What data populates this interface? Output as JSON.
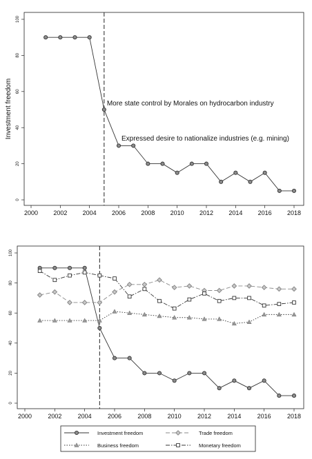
{
  "chart_data": [
    {
      "type": "line",
      "ylabel": "Investment freedom",
      "xlim": [
        2000,
        2018
      ],
      "ylim": [
        0,
        100
      ],
      "xticks": [
        2000,
        2002,
        2004,
        2006,
        2008,
        2010,
        2012,
        2014,
        2016,
        2018
      ],
      "yticks": [
        0,
        20,
        40,
        60,
        80,
        100
      ],
      "vline_x": 2005,
      "x": [
        2001,
        2002,
        2003,
        2004,
        2005,
        2006,
        2007,
        2008,
        2009,
        2010,
        2011,
        2012,
        2013,
        2014,
        2015,
        2016,
        2017,
        2018
      ],
      "series": [
        {
          "values": [
            90,
            90,
            90,
            90,
            50,
            30,
            30,
            20,
            20,
            15,
            20,
            20,
            10,
            15,
            10,
            15,
            5,
            5
          ]
        }
      ],
      "annotations": [
        {
          "text": "More state control by Morales on hydrocarbon industry",
          "x": 2005,
          "y": 50
        },
        {
          "text": "Expressed desire to nationalize industries (e.g. mining)",
          "x": 2006,
          "y": 32
        }
      ]
    },
    {
      "type": "line",
      "xlim": [
        2000,
        2018
      ],
      "ylim": [
        0,
        100
      ],
      "xticks": [
        2000,
        2002,
        2004,
        2006,
        2008,
        2010,
        2012,
        2014,
        2016,
        2018
      ],
      "yticks": [
        0,
        20,
        40,
        60,
        80,
        100
      ],
      "vline_x": 2005,
      "x": [
        2001,
        2002,
        2003,
        2004,
        2005,
        2006,
        2007,
        2008,
        2009,
        2010,
        2011,
        2012,
        2013,
        2014,
        2015,
        2016,
        2017,
        2018
      ],
      "legend_placement": "bottom",
      "series": [
        {
          "name": "Investment freedom",
          "marker": "circle",
          "dash": "solid",
          "values": [
            90,
            90,
            90,
            90,
            50,
            30,
            30,
            20,
            20,
            15,
            20,
            20,
            10,
            15,
            10,
            15,
            5,
            5
          ]
        },
        {
          "name": "Trade freedom",
          "marker": "diamond",
          "dash": "longdash",
          "values": [
            72,
            74,
            67,
            67,
            67,
            74,
            79,
            79,
            82,
            77,
            78,
            75,
            75,
            78,
            78,
            77,
            76,
            76
          ]
        },
        {
          "name": "Business freedom",
          "marker": "triangle",
          "dash": "dot",
          "values": [
            55,
            55,
            55,
            55,
            55,
            61,
            60,
            59,
            58,
            57,
            57,
            56,
            56,
            53,
            54,
            59,
            59,
            59
          ]
        },
        {
          "name": "Monetary freedom",
          "marker": "square",
          "dash": "dashdot",
          "values": [
            88,
            82,
            85,
            87,
            85,
            83,
            71,
            76,
            68,
            63,
            69,
            73,
            68,
            70,
            70,
            65,
            66,
            67
          ]
        }
      ]
    }
  ]
}
